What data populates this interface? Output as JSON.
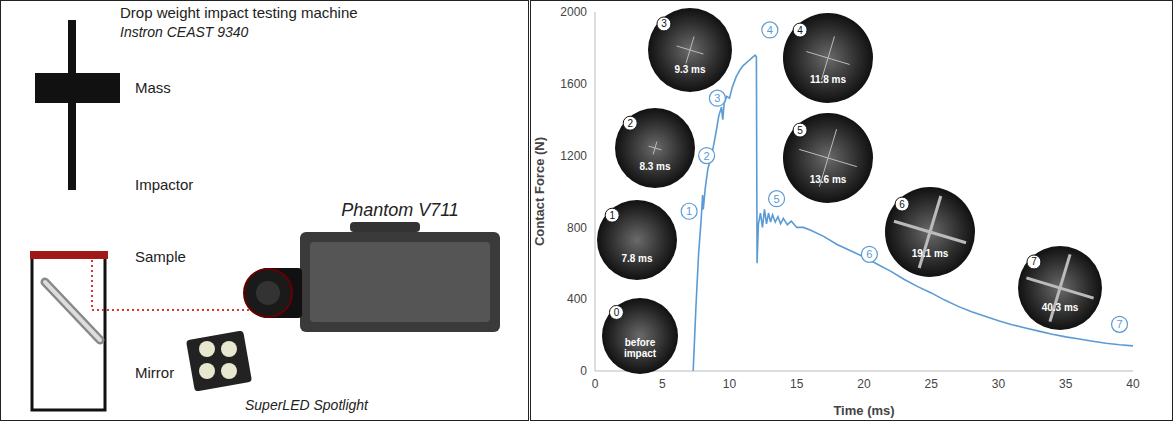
{
  "diagram": {
    "title": "Drop weight impact testing machine",
    "subtitle": "Instron CEAST 9340",
    "labels": {
      "mass": "Mass",
      "impactor": "Impactor",
      "sample": "Sample",
      "mirror": "Mirror",
      "camera": "Phantom V711",
      "light": "SuperLED Spotlight"
    }
  },
  "chart_data": {
    "type": "line",
    "x_label": "Time (ms)",
    "y_label": "Contact Force (N)",
    "xlim": [
      0,
      40
    ],
    "xticks": [
      0,
      5,
      10,
      15,
      20,
      25,
      30,
      35,
      40
    ],
    "ylim": [
      0,
      2000
    ],
    "yticks": [
      0,
      400,
      800,
      1200,
      1600,
      2000
    ],
    "grid": false,
    "color": "#5b9bd5",
    "x": [
      7.3,
      7.5,
      7.7,
      7.9,
      8.0,
      8.05,
      8.2,
      8.4,
      8.6,
      8.8,
      9.0,
      9.2,
      9.4,
      9.5,
      9.6,
      9.8,
      10.0,
      10.2,
      10.5,
      10.8,
      11.0,
      11.3,
      11.6,
      11.9,
      12.0,
      12.05,
      12.15,
      12.3,
      12.45,
      12.6,
      12.75,
      12.9,
      13.05,
      13.2,
      13.4,
      13.6,
      13.8,
      14.0,
      14.3,
      14.6,
      15.0,
      15.5,
      16.0,
      17.0,
      18.0,
      19.0,
      20.0,
      21,
      22,
      23,
      24,
      25,
      26,
      27,
      28,
      29,
      30,
      31,
      32,
      33,
      34,
      35,
      36,
      37,
      38,
      39,
      40
    ],
    "values": [
      0,
      350,
      650,
      850,
      980,
      900,
      1020,
      1130,
      1180,
      1250,
      1330,
      1420,
      1470,
      1400,
      1490,
      1530,
      1520,
      1580,
      1640,
      1680,
      1700,
      1720,
      1740,
      1760,
      1750,
      600,
      820,
      880,
      800,
      900,
      820,
      880,
      830,
      870,
      830,
      860,
      820,
      850,
      815,
      835,
      800,
      800,
      785,
      750,
      705,
      670,
      635,
      595,
      555,
      510,
      470,
      435,
      395,
      360,
      330,
      305,
      280,
      258,
      240,
      222,
      205,
      190,
      178,
      166,
      155,
      146,
      140
    ],
    "annotations": [
      {
        "label": "1",
        "x": 7.0,
        "y": 890
      },
      {
        "label": "2",
        "x": 8.3,
        "y": 1200
      },
      {
        "label": "3",
        "x": 9.1,
        "y": 1520
      },
      {
        "label": "4",
        "x": 13.0,
        "y": 1900
      },
      {
        "label": "5",
        "x": 13.5,
        "y": 960
      },
      {
        "label": "6",
        "x": 20.4,
        "y": 650
      },
      {
        "label": "7",
        "x": 39.0,
        "y": 260
      }
    ],
    "snapshots": [
      {
        "label": "0",
        "caption": "before impact"
      },
      {
        "label": "1",
        "caption": "7.8 ms"
      },
      {
        "label": "2",
        "caption": "8.3 ms"
      },
      {
        "label": "3",
        "caption": "9.3 ms"
      },
      {
        "label": "4",
        "caption": "11.8 ms"
      },
      {
        "label": "5",
        "caption": "13.6 ms"
      },
      {
        "label": "6",
        "caption": "19.1 ms"
      },
      {
        "label": "7",
        "caption": "40.3 ms"
      }
    ]
  }
}
